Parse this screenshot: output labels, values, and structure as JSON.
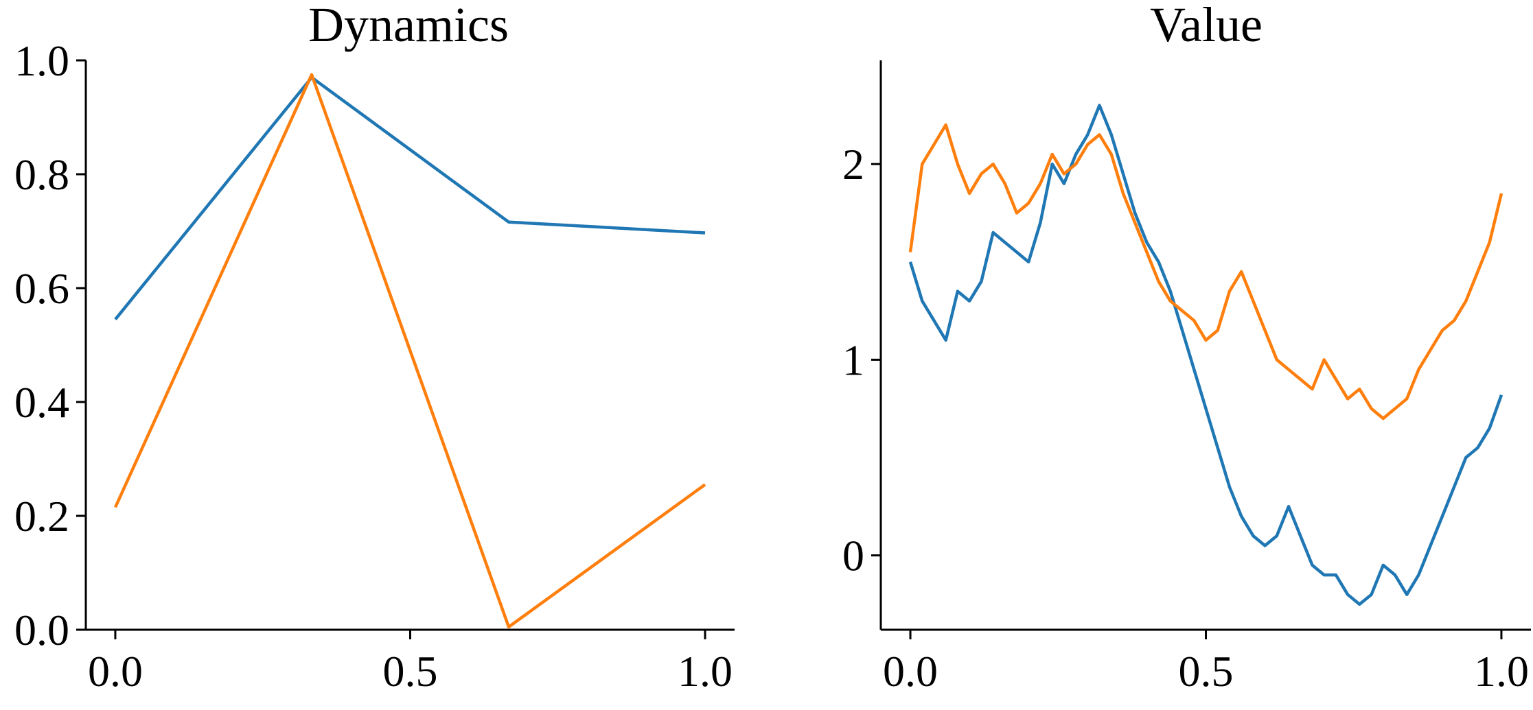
{
  "chart_data": [
    {
      "type": "line",
      "title": "Dynamics",
      "xlabel": "",
      "ylabel": "",
      "xlim": [
        -0.05,
        1.05
      ],
      "ylim": [
        0.0,
        1.0
      ],
      "xticks": [
        "0.0",
        "0.5",
        "1.0"
      ],
      "yticks": [
        "0.0",
        "0.2",
        "0.4",
        "0.6",
        "0.8",
        "1.0"
      ],
      "grid": false,
      "colors": [
        "#1f77b4",
        "#ff7f0e"
      ],
      "series": [
        {
          "x": [
            0.0,
            0.333,
            0.667,
            1.0
          ],
          "y": [
            0.545,
            0.97,
            0.716,
            0.697
          ]
        },
        {
          "x": [
            0.0,
            0.333,
            0.667,
            1.0
          ],
          "y": [
            0.215,
            0.975,
            0.005,
            0.255
          ]
        }
      ]
    },
    {
      "type": "line",
      "title": "Value",
      "xlabel": "",
      "ylabel": "",
      "xlim": [
        -0.05,
        1.05
      ],
      "ylim": [
        -0.38,
        2.53
      ],
      "xticks": [
        "0.0",
        "0.5",
        "1.0"
      ],
      "yticks": [
        "0",
        "1",
        "2"
      ],
      "grid": false,
      "colors": [
        "#1f77b4",
        "#ff7f0e"
      ],
      "series": [
        {
          "x": [
            0.0,
            0.02,
            0.04,
            0.06,
            0.08,
            0.1,
            0.12,
            0.14,
            0.16,
            0.18,
            0.2,
            0.22,
            0.24,
            0.26,
            0.28,
            0.3,
            0.32,
            0.34,
            0.36,
            0.38,
            0.4,
            0.42,
            0.44,
            0.46,
            0.48,
            0.5,
            0.52,
            0.54,
            0.56,
            0.58,
            0.6,
            0.62,
            0.64,
            0.66,
            0.68,
            0.7,
            0.72,
            0.74,
            0.76,
            0.78,
            0.8,
            0.82,
            0.84,
            0.86,
            0.88,
            0.9,
            0.92,
            0.94,
            0.96,
            0.98,
            1.0
          ],
          "y": [
            1.5,
            1.3,
            1.2,
            1.1,
            1.35,
            1.3,
            1.4,
            1.65,
            1.6,
            1.55,
            1.5,
            1.7,
            2.0,
            1.9,
            2.05,
            2.15,
            2.3,
            2.15,
            1.95,
            1.75,
            1.6,
            1.5,
            1.35,
            1.15,
            0.95,
            0.75,
            0.55,
            0.35,
            0.2,
            0.1,
            0.05,
            0.1,
            0.25,
            0.1,
            -0.05,
            -0.1,
            -0.1,
            -0.2,
            -0.25,
            -0.2,
            -0.05,
            -0.1,
            -0.2,
            -0.1,
            0.05,
            0.2,
            0.35,
            0.5,
            0.55,
            0.65,
            0.82
          ]
        },
        {
          "x": [
            0.0,
            0.02,
            0.04,
            0.06,
            0.08,
            0.1,
            0.12,
            0.14,
            0.16,
            0.18,
            0.2,
            0.22,
            0.24,
            0.26,
            0.28,
            0.3,
            0.32,
            0.34,
            0.36,
            0.38,
            0.4,
            0.42,
            0.44,
            0.46,
            0.48,
            0.5,
            0.52,
            0.54,
            0.56,
            0.58,
            0.6,
            0.62,
            0.64,
            0.66,
            0.68,
            0.7,
            0.72,
            0.74,
            0.76,
            0.78,
            0.8,
            0.82,
            0.84,
            0.86,
            0.88,
            0.9,
            0.92,
            0.94,
            0.96,
            0.98,
            1.0
          ],
          "y": [
            1.55,
            2.0,
            2.1,
            2.2,
            2.0,
            1.85,
            1.95,
            2.0,
            1.9,
            1.75,
            1.8,
            1.9,
            2.05,
            1.95,
            2.0,
            2.1,
            2.15,
            2.05,
            1.85,
            1.7,
            1.55,
            1.4,
            1.3,
            1.25,
            1.2,
            1.1,
            1.15,
            1.35,
            1.45,
            1.3,
            1.15,
            1.0,
            0.95,
            0.9,
            0.85,
            1.0,
            0.9,
            0.8,
            0.85,
            0.75,
            0.7,
            0.75,
            0.8,
            0.95,
            1.05,
            1.15,
            1.2,
            1.3,
            1.45,
            1.6,
            1.85
          ]
        }
      ]
    }
  ]
}
